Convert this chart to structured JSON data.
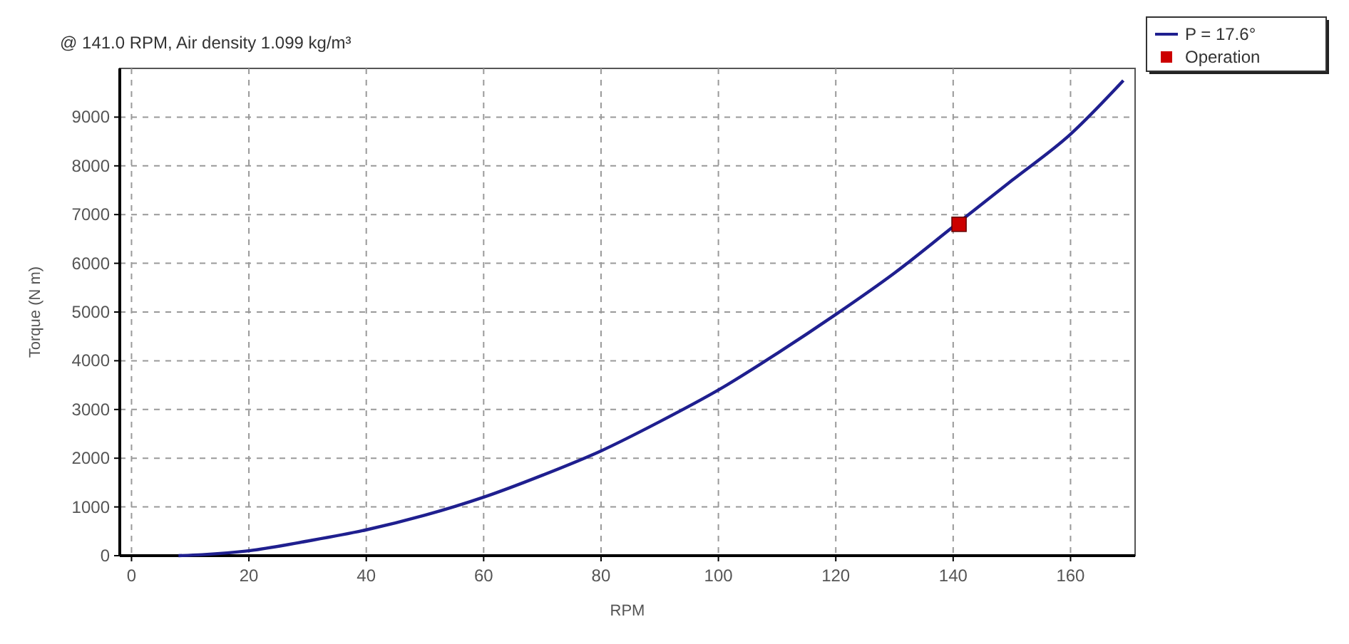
{
  "chart_data": {
    "type": "line",
    "title": "@ 141.0 RPM, Air density 1.099 kg/m³",
    "xlabel": "RPM",
    "ylabel": "Torque (N m)",
    "xlim": [
      -2,
      171
    ],
    "ylim": [
      0,
      10000
    ],
    "xticks": [
      0,
      20,
      40,
      60,
      80,
      100,
      120,
      140,
      160
    ],
    "yticks": [
      0,
      1000,
      2000,
      3000,
      4000,
      5000,
      6000,
      7000,
      8000,
      9000
    ],
    "grid": true,
    "legend": "top right",
    "series": [
      {
        "name": "P = 17.6°",
        "color": "#1f1f8f",
        "marker": "none",
        "x": [
          8,
          12,
          20,
          30,
          40,
          50,
          60,
          70,
          80,
          90,
          100,
          110,
          120,
          130,
          140,
          150,
          160,
          169
        ],
        "values": [
          0,
          20,
          100,
          300,
          530,
          830,
          1200,
          1650,
          2150,
          2750,
          3400,
          4150,
          4950,
          5800,
          6750,
          7700,
          8650,
          9750
        ]
      },
      {
        "name": "Operation",
        "color": "#cc0000",
        "type": "scatter",
        "marker": "square",
        "x": [
          141
        ],
        "values": [
          6800
        ]
      }
    ]
  }
}
